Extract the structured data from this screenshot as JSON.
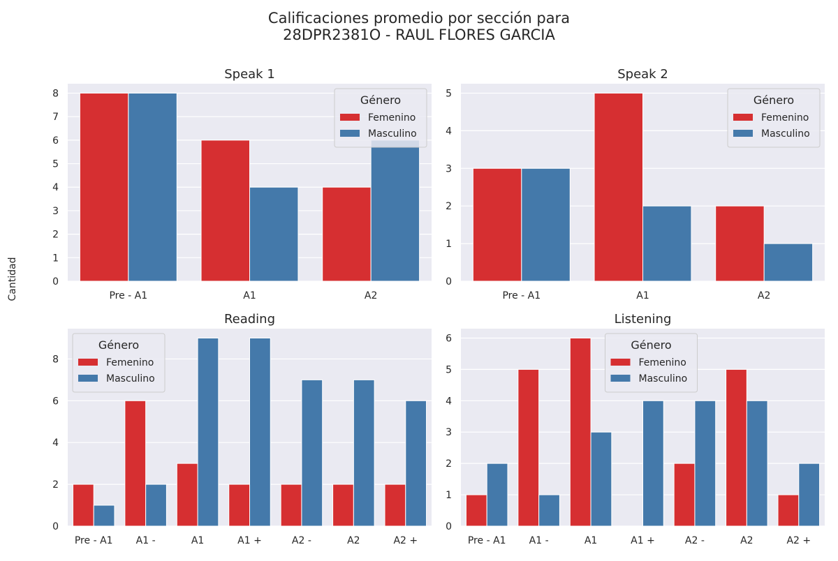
{
  "suptitle": {
    "line1": "Calificaciones promedio por sección para",
    "line2": "28DPR2381O - RAUL FLORES GARCIA"
  },
  "ylabel": "Cantidad",
  "colors": {
    "femenino": "#d62f31",
    "masculino": "#4479aa",
    "plot_bg": "#eaeaf2",
    "grid": "#ffffff",
    "text": "#262626"
  },
  "chart_data": [
    {
      "type": "bar",
      "title": "Speak 1",
      "categories": [
        "Pre - A1",
        "A1",
        "A2"
      ],
      "series": [
        {
          "name": "Femenino",
          "values": [
            8,
            6,
            4
          ]
        },
        {
          "name": "Masculino",
          "values": [
            8,
            4,
            6
          ]
        }
      ],
      "ylim": [
        0,
        8.4
      ],
      "yticks": [
        0,
        1,
        2,
        3,
        4,
        5,
        6,
        7,
        8
      ],
      "legend_title": "Género",
      "legend_position": "top-right",
      "grid": true
    },
    {
      "type": "bar",
      "title": "Speak 2",
      "categories": [
        "Pre - A1",
        "A1",
        "A2"
      ],
      "series": [
        {
          "name": "Femenino",
          "values": [
            3,
            5,
            2
          ]
        },
        {
          "name": "Masculino",
          "values": [
            3,
            2,
            1
          ]
        }
      ],
      "ylim": [
        0,
        5.25
      ],
      "yticks": [
        0,
        1,
        2,
        3,
        4,
        5
      ],
      "legend_title": "Género",
      "legend_position": "top-right",
      "grid": true
    },
    {
      "type": "bar",
      "title": "Reading",
      "categories": [
        "Pre - A1",
        "A1 -",
        "A1",
        "A1 +",
        "A2 -",
        "A2",
        "A2 +"
      ],
      "series": [
        {
          "name": "Femenino",
          "values": [
            2,
            6,
            3,
            2,
            2,
            2,
            2
          ]
        },
        {
          "name": "Masculino",
          "values": [
            1,
            2,
            9,
            9,
            7,
            7,
            6
          ]
        }
      ],
      "ylim": [
        0,
        9.45
      ],
      "yticks": [
        0,
        2,
        4,
        6,
        8
      ],
      "legend_title": "Género",
      "legend_position": "top-left",
      "grid": true
    },
    {
      "type": "bar",
      "title": "Listening",
      "categories": [
        "Pre - A1",
        "A1 -",
        "A1",
        "A1 +",
        "A2 -",
        "A2",
        "A2 +"
      ],
      "series": [
        {
          "name": "Femenino",
          "values": [
            1,
            5,
            6,
            0,
            2,
            5,
            1
          ]
        },
        {
          "name": "Masculino",
          "values": [
            2,
            1,
            3,
            4,
            4,
            4,
            2
          ]
        }
      ],
      "ylim": [
        0,
        6.3
      ],
      "yticks": [
        0,
        1,
        2,
        3,
        4,
        5,
        6
      ],
      "legend_title": "Género",
      "legend_position": "top-center",
      "grid": true
    }
  ]
}
